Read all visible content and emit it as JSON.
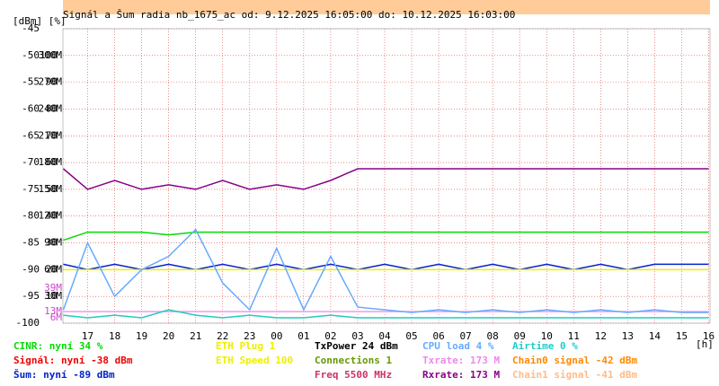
{
  "chart_data": {
    "type": "line",
    "title": "Signál a Šum radia nb_1675_ac od: 9.12.2025 16:05:00 do: 10.12.2025 16:03:00",
    "y_label": "[dBm] [%]",
    "x_label": "[h]",
    "xlim": [
      16.083,
      40.05
    ],
    "xticks": [
      {
        "value": 17,
        "label": "17"
      },
      {
        "value": 18,
        "label": "18"
      },
      {
        "value": 19,
        "label": "19"
      },
      {
        "value": 20,
        "label": "20"
      },
      {
        "value": 21,
        "label": "21"
      },
      {
        "value": 22,
        "label": "22"
      },
      {
        "value": 23,
        "label": "23"
      },
      {
        "value": 24,
        "label": "00"
      },
      {
        "value": 25,
        "label": "01"
      },
      {
        "value": 26,
        "label": "02"
      },
      {
        "value": 27,
        "label": "03"
      },
      {
        "value": 28,
        "label": "04"
      },
      {
        "value": 29,
        "label": "05"
      },
      {
        "value": 30,
        "label": "06"
      },
      {
        "value": 31,
        "label": "07"
      },
      {
        "value": 32,
        "label": "08"
      },
      {
        "value": 33,
        "label": "09"
      },
      {
        "value": 34,
        "label": "10"
      },
      {
        "value": 35,
        "label": "11"
      },
      {
        "value": 36,
        "label": "12"
      },
      {
        "value": 37,
        "label": "13"
      },
      {
        "value": 38,
        "label": "14"
      },
      {
        "value": 39,
        "label": "15"
      },
      {
        "value": 40,
        "label": "16"
      }
    ],
    "ylim": [
      -100,
      -45
    ],
    "yticks": [
      -100,
      -95,
      -90,
      -85,
      -80,
      -75,
      -70,
      -65,
      -60,
      -55,
      -50,
      -45
    ],
    "y2lim": [
      0,
      110
    ],
    "y2ticks": [
      10,
      20,
      30,
      40,
      50,
      60,
      70,
      80,
      90,
      100
    ],
    "y3lim": [
      0,
      330
    ],
    "y3ticks": [
      {
        "value": 30,
        "label": "30M"
      },
      {
        "value": 60,
        "label": "60M"
      },
      {
        "value": 90,
        "label": "90M"
      },
      {
        "value": 120,
        "label": "120M"
      },
      {
        "value": 150,
        "label": "150M"
      },
      {
        "value": 180,
        "label": "180M"
      },
      {
        "value": 210,
        "label": "210M"
      },
      {
        "value": 240,
        "label": "240M"
      },
      {
        "value": 270,
        "label": "270M"
      },
      {
        "value": 300,
        "label": "300M"
      }
    ],
    "y3ticks_extra": [
      {
        "value": 6,
        "label": "6M"
      },
      {
        "value": 13,
        "label": "13M"
      },
      {
        "value": 39,
        "label": "39M"
      }
    ],
    "grid": true,
    "x": [
      16.1,
      17,
      18,
      19,
      20,
      21,
      22,
      23,
      24,
      25,
      26,
      27,
      28,
      29,
      30,
      31,
      32,
      33,
      34,
      35,
      36,
      37,
      38,
      39,
      40
    ],
    "series": [
      {
        "color": "#880088",
        "axis": "y3",
        "values": [
          173,
          150,
          160,
          150,
          155,
          150,
          160,
          150,
          155,
          150,
          160,
          173,
          173,
          173,
          173,
          173,
          173,
          173,
          173,
          173,
          173,
          173,
          173,
          173,
          173
        ]
      },
      {
        "color": "#0022cc",
        "axis": "y",
        "values": [
          -89,
          -90,
          -89,
          -90,
          -89,
          -90,
          -89,
          -90,
          -89,
          -90,
          -89,
          -90,
          -89,
          -90,
          -89,
          -90,
          -89,
          -90,
          -89,
          -90,
          -89,
          -90,
          -89,
          -89,
          -89
        ]
      },
      {
        "color": "#00dd00",
        "axis": "y2",
        "values": [
          31,
          34,
          34,
          34,
          33,
          34,
          34,
          34,
          34,
          34,
          34,
          34,
          34,
          34,
          34,
          34,
          34,
          34,
          34,
          34,
          34,
          34,
          34,
          34,
          34
        ]
      },
      {
        "color": "#eeee00",
        "axis": "y2",
        "values": [
          20,
          20,
          20,
          20,
          20,
          20,
          20,
          20,
          20,
          20,
          20,
          20,
          20,
          20,
          20,
          20,
          20,
          20,
          20,
          20,
          20,
          20,
          20,
          20,
          20
        ]
      },
      {
        "color": "#ee99ee",
        "axis": "y3",
        "values": [
          13,
          13,
          13,
          13,
          13,
          13,
          13,
          13,
          13,
          13,
          13,
          13,
          13,
          13,
          13,
          13,
          13,
          13,
          13,
          13,
          13,
          13,
          13,
          13,
          13
        ]
      },
      {
        "color": "#66aaff",
        "axis": "y2",
        "values": [
          5,
          30,
          10,
          20,
          25,
          35,
          15,
          5,
          28,
          5,
          25,
          6,
          5,
          4,
          5,
          4,
          5,
          4,
          5,
          4,
          5,
          4,
          5,
          4,
          4
        ]
      },
      {
        "color": "#22ccbb",
        "axis": "y2",
        "values": [
          3,
          2,
          3,
          2,
          5,
          3,
          2,
          3,
          2,
          2,
          3,
          2,
          2,
          2,
          2,
          2,
          2,
          2,
          2,
          2,
          2,
          2,
          2,
          2,
          2
        ]
      }
    ],
    "legend": [
      [
        {
          "text": "CINR: nyní 34 %",
          "color": "#00dd00"
        },
        {
          "text": "Signál: nyní -38 dBm",
          "color": "#ee0000"
        },
        {
          "text": "Šum: nyní -89 dBm",
          "color": "#0022cc"
        }
      ],
      [
        {
          "text": "ETH Plug 1",
          "color": "#eeee00"
        },
        {
          "text": "ETH Speed 100",
          "color": "#eeee00"
        }
      ],
      [
        {
          "text": "TxPower 24 dBm",
          "color": "#000000"
        },
        {
          "text": "Connections 1",
          "color": "#669900"
        },
        {
          "text": "Freq 5500 MHz",
          "color": "#cc3366"
        }
      ],
      [
        {
          "text": "CPU load 4 %",
          "color": "#66aaff"
        },
        {
          "text": "Txrate: 173 M",
          "color": "#ee88ee"
        },
        {
          "text": "Rxrate: 173 M",
          "color": "#880088"
        }
      ],
      [
        {
          "text": "Airtime 0 %",
          "color": "#22cccc"
        },
        {
          "text": "Chain0 signal -42 dBm",
          "color": "#ff8800"
        },
        {
          "text": "Chain1 signal -41 dBm",
          "color": "#ffbb88"
        }
      ]
    ]
  }
}
